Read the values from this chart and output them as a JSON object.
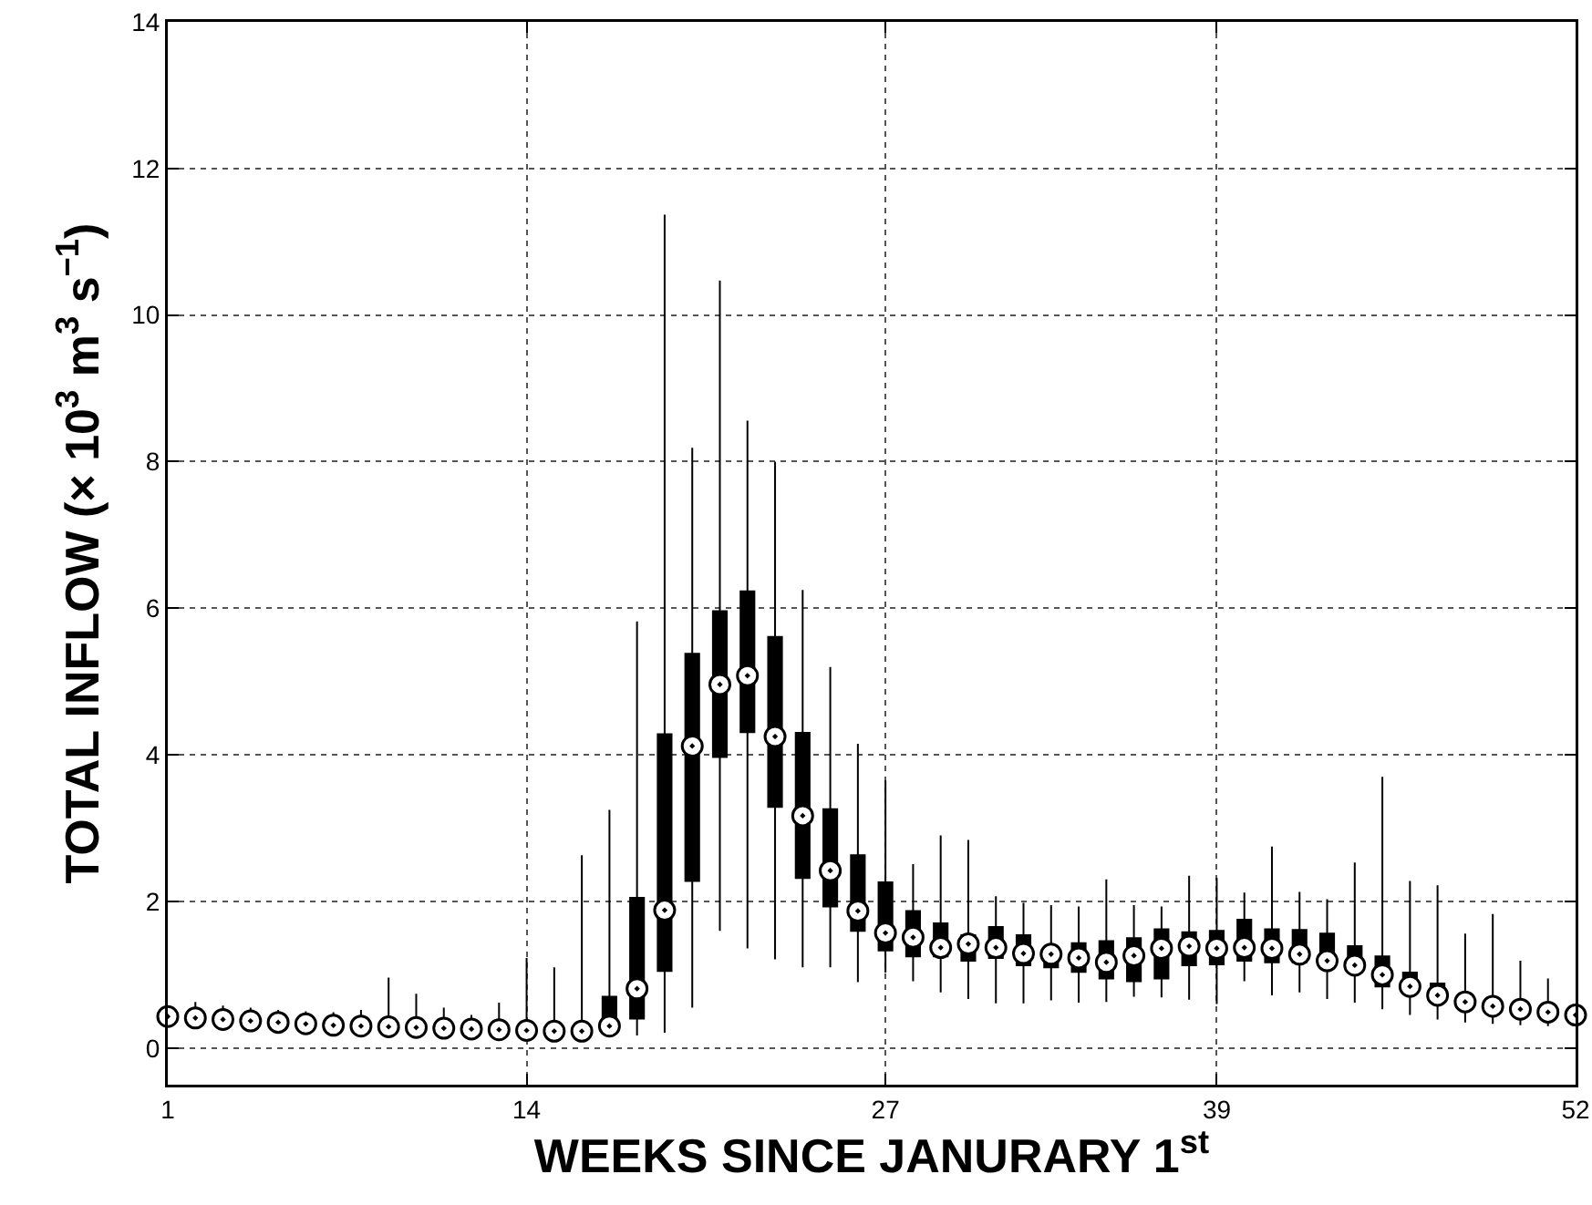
{
  "chart_data": {
    "type": "box",
    "xlabel": "WEEKS SINCE JANURARY 1$^{st}$",
    "ylabel": "TOTAL INFLOW (× 10$^{3}$ m$^{3}$ s$^{−1}$)",
    "categories": [
      "1",
      null,
      null,
      null,
      null,
      null,
      null,
      null,
      null,
      null,
      null,
      null,
      null,
      "14",
      null,
      null,
      null,
      null,
      null,
      null,
      null,
      null,
      null,
      null,
      null,
      null,
      "27",
      null,
      null,
      null,
      null,
      null,
      null,
      null,
      null,
      null,
      null,
      null,
      "39",
      null,
      null,
      null,
      null,
      null,
      null,
      null,
      null,
      null,
      null,
      null,
      null,
      "52"
    ],
    "ylim": [
      -0.5,
      14
    ],
    "yticks": [
      0,
      2,
      4,
      6,
      8,
      10,
      12,
      14
    ],
    "grid": true,
    "marker": "circle",
    "series": [
      {
        "color": "#000000",
        "boxes": [
          {
            "low": 0.32,
            "q1": 0.39,
            "median": 0.43,
            "q3": 0.47,
            "high": 0.5
          },
          {
            "low": 0.3,
            "q1": 0.37,
            "median": 0.41,
            "q3": 0.45,
            "high": 0.63
          },
          {
            "low": 0.29,
            "q1": 0.35,
            "median": 0.39,
            "q3": 0.43,
            "high": 0.58
          },
          {
            "low": 0.27,
            "q1": 0.33,
            "median": 0.37,
            "q3": 0.41,
            "high": 0.55
          },
          {
            "low": 0.26,
            "q1": 0.31,
            "median": 0.35,
            "q3": 0.39,
            "high": 0.52
          },
          {
            "low": 0.24,
            "q1": 0.29,
            "median": 0.33,
            "q3": 0.37,
            "high": 0.5
          },
          {
            "low": 0.22,
            "q1": 0.27,
            "median": 0.31,
            "q3": 0.35,
            "high": 0.49
          },
          {
            "low": 0.21,
            "q1": 0.26,
            "median": 0.3,
            "q3": 0.34,
            "high": 0.52
          },
          {
            "low": 0.2,
            "q1": 0.25,
            "median": 0.29,
            "q3": 0.34,
            "high": 0.96
          },
          {
            "low": 0.19,
            "q1": 0.24,
            "median": 0.28,
            "q3": 0.33,
            "high": 0.74
          },
          {
            "low": 0.18,
            "q1": 0.23,
            "median": 0.27,
            "q3": 0.31,
            "high": 0.55
          },
          {
            "low": 0.17,
            "q1": 0.22,
            "median": 0.26,
            "q3": 0.3,
            "high": 0.45
          },
          {
            "low": 0.16,
            "q1": 0.21,
            "median": 0.25,
            "q3": 0.3,
            "high": 0.62
          },
          {
            "low": 0.15,
            "q1": 0.2,
            "median": 0.24,
            "q3": 0.29,
            "high": 1.23
          },
          {
            "low": 0.14,
            "q1": 0.19,
            "median": 0.23,
            "q3": 0.28,
            "high": 1.1
          },
          {
            "low": 0.14,
            "q1": 0.19,
            "median": 0.23,
            "q3": 0.3,
            "high": 2.63
          },
          {
            "low": 0.15,
            "q1": 0.2,
            "median": 0.3,
            "q3": 0.7,
            "high": 3.25
          },
          {
            "low": 0.17,
            "q1": 0.4,
            "median": 0.81,
            "q3": 2.05,
            "high": 5.82
          },
          {
            "low": 0.21,
            "q1": 1.05,
            "median": 1.88,
            "q3": 4.28,
            "high": 11.37
          },
          {
            "low": 0.55,
            "q1": 2.28,
            "median": 4.12,
            "q3": 5.38,
            "high": 8.19
          },
          {
            "low": 1.6,
            "q1": 3.97,
            "median": 4.96,
            "q3": 5.96,
            "high": 10.47
          },
          {
            "low": 1.36,
            "q1": 4.31,
            "median": 5.08,
            "q3": 6.23,
            "high": 8.56
          },
          {
            "low": 1.21,
            "q1": 3.29,
            "median": 4.25,
            "q3": 5.61,
            "high": 8.0
          },
          {
            "low": 1.1,
            "q1": 2.32,
            "median": 3.17,
            "q3": 4.3,
            "high": 6.25
          },
          {
            "low": 1.1,
            "q1": 1.93,
            "median": 2.42,
            "q3": 3.26,
            "high": 5.2
          },
          {
            "low": 0.9,
            "q1": 1.6,
            "median": 1.87,
            "q3": 2.63,
            "high": 4.15
          },
          {
            "low": 1.03,
            "q1": 1.33,
            "median": 1.57,
            "q3": 2.26,
            "high": 3.65
          },
          {
            "low": 0.91,
            "q1": 1.25,
            "median": 1.51,
            "q3": 1.87,
            "high": 2.51
          },
          {
            "low": 0.76,
            "q1": 1.25,
            "median": 1.37,
            "q3": 1.7,
            "high": 2.9
          },
          {
            "low": 0.67,
            "q1": 1.19,
            "median": 1.42,
            "q3": 1.54,
            "high": 2.84
          },
          {
            "low": 0.61,
            "q1": 1.23,
            "median": 1.37,
            "q3": 1.65,
            "high": 2.07
          },
          {
            "low": 0.61,
            "q1": 1.13,
            "median": 1.29,
            "q3": 1.54,
            "high": 1.98
          },
          {
            "low": 0.65,
            "q1": 1.1,
            "median": 1.28,
            "q3": 1.37,
            "high": 1.95
          },
          {
            "low": 0.62,
            "q1": 1.04,
            "median": 1.23,
            "q3": 1.43,
            "high": 1.93
          },
          {
            "low": 0.63,
            "q1": 0.95,
            "median": 1.17,
            "q3": 1.46,
            "high": 2.3
          },
          {
            "low": 0.7,
            "q1": 0.91,
            "median": 1.26,
            "q3": 1.5,
            "high": 1.95
          },
          {
            "low": 0.69,
            "q1": 0.95,
            "median": 1.36,
            "q3": 1.62,
            "high": 1.93
          },
          {
            "low": 0.66,
            "q1": 1.13,
            "median": 1.39,
            "q3": 1.58,
            "high": 2.35
          },
          {
            "low": 0.6,
            "q1": 1.14,
            "median": 1.36,
            "q3": 1.6,
            "high": 2.32
          },
          {
            "low": 0.91,
            "q1": 1.19,
            "median": 1.37,
            "q3": 1.75,
            "high": 2.12
          },
          {
            "low": 0.72,
            "q1": 1.17,
            "median": 1.36,
            "q3": 1.62,
            "high": 2.75
          },
          {
            "low": 0.76,
            "q1": 1.17,
            "median": 1.28,
            "q3": 1.61,
            "high": 2.13
          },
          {
            "low": 0.67,
            "q1": 1.09,
            "median": 1.19,
            "q3": 1.56,
            "high": 2.03
          },
          {
            "low": 0.62,
            "q1": 1.05,
            "median": 1.13,
            "q3": 1.39,
            "high": 2.53
          },
          {
            "low": 0.53,
            "q1": 0.84,
            "median": 1.0,
            "q3": 1.25,
            "high": 3.7
          },
          {
            "low": 0.45,
            "q1": 0.76,
            "median": 0.84,
            "q3": 1.03,
            "high": 2.28
          },
          {
            "low": 0.39,
            "q1": 0.65,
            "median": 0.72,
            "q3": 0.88,
            "high": 2.22
          },
          {
            "low": 0.35,
            "q1": 0.57,
            "median": 0.63,
            "q3": 0.7,
            "high": 1.56
          },
          {
            "low": 0.33,
            "q1": 0.52,
            "median": 0.57,
            "q3": 0.62,
            "high": 1.83
          },
          {
            "low": 0.31,
            "q1": 0.48,
            "median": 0.53,
            "q3": 0.58,
            "high": 1.19
          },
          {
            "low": 0.3,
            "q1": 0.45,
            "median": 0.49,
            "q3": 0.53,
            "high": 0.95
          },
          {
            "low": 0.3,
            "q1": 0.41,
            "median": 0.45,
            "q3": 0.5,
            "high": 0.55
          }
        ]
      },
      {
        "type": "scatter",
        "color": "#000000",
        "values": [
          0.43,
          0.41,
          0.39,
          0.37,
          0.35,
          0.33,
          0.31,
          0.3,
          0.29,
          0.28,
          0.27,
          0.26,
          0.25,
          0.24,
          0.23,
          0.23,
          0.3,
          0.81,
          1.88,
          4.12,
          4.96,
          5.08,
          4.25,
          3.17,
          2.42,
          1.87,
          1.57,
          1.51,
          1.37,
          1.42,
          1.37,
          1.29,
          1.28,
          1.23,
          1.17,
          1.26,
          1.36,
          1.39,
          1.36,
          1.37,
          1.36,
          1.28,
          1.19,
          1.13,
          1.0,
          0.84,
          0.72,
          0.63,
          0.57,
          0.53,
          0.49,
          0.45
        ]
      }
    ]
  }
}
